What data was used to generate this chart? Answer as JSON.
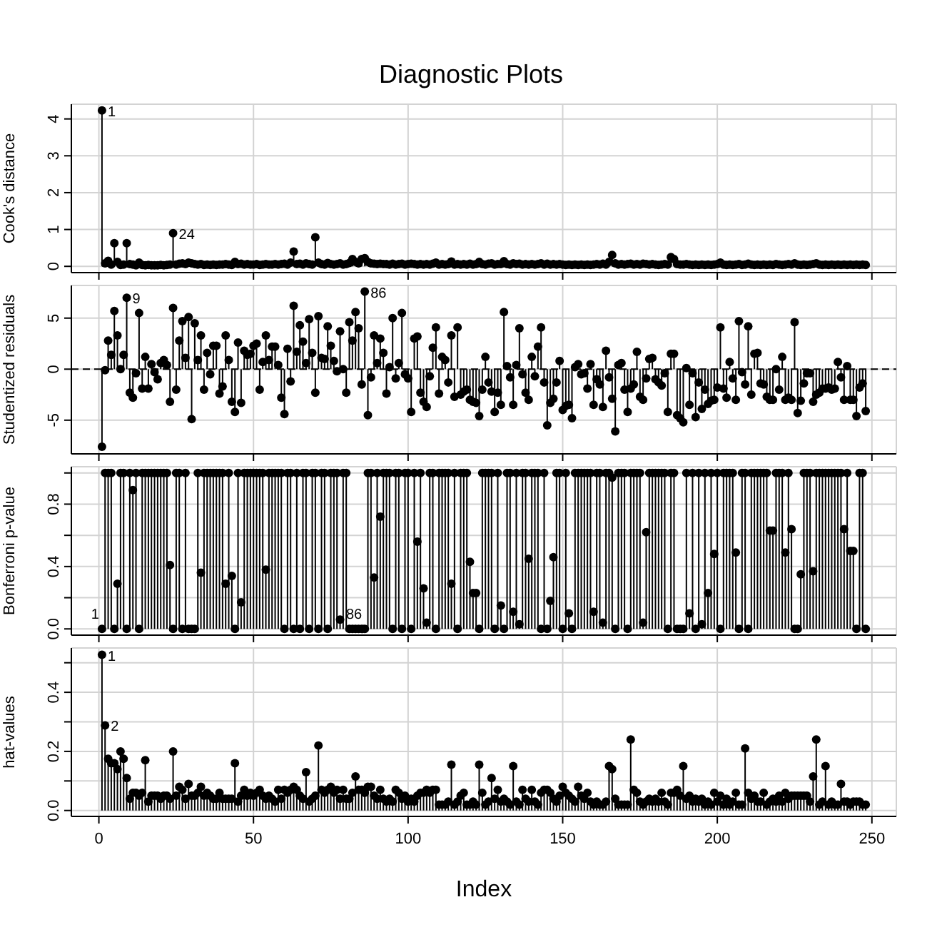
{
  "chart_data": [
    {
      "type": "lollipop",
      "title": "Diagnostic Plots",
      "ylabel": "Cook's distance",
      "color": "#000000",
      "marker": "circle",
      "grid": true,
      "tick_labels": "y",
      "xlim": [
        -8.9,
        257.9
      ],
      "xticks": [
        0,
        50,
        100,
        150,
        200,
        250
      ],
      "ylim": [
        -0.17,
        4.4
      ],
      "yticks": [
        0,
        1,
        2,
        3,
        4
      ],
      "annotations": [
        {
          "text": "1",
          "x": 1,
          "y": 4.23
        },
        {
          "text": "24",
          "x": 24,
          "y": 0.9
        }
      ],
      "x": [
        1,
        2,
        3,
        4,
        5,
        6,
        7,
        8,
        9,
        10,
        11,
        12,
        13,
        14,
        15,
        16,
        17,
        18,
        19,
        20,
        21,
        22,
        23,
        24,
        25,
        26,
        27,
        28,
        29,
        30,
        31,
        32,
        33,
        34,
        35,
        36,
        37,
        38,
        39,
        40,
        41,
        42,
        43,
        44,
        45,
        46,
        47,
        48,
        49,
        50,
        51,
        52,
        53,
        54,
        55,
        56,
        57,
        58,
        59,
        60,
        61,
        62,
        63,
        64,
        65,
        66,
        67,
        68,
        69,
        70,
        71,
        72,
        73,
        74,
        75,
        76,
        77,
        78,
        79,
        80,
        81,
        82,
        83,
        84,
        85,
        86,
        87,
        88,
        89,
        90,
        91,
        92,
        93,
        94,
        95,
        96,
        97,
        98,
        99,
        100,
        101,
        102,
        103,
        104,
        105,
        106,
        107,
        108,
        109,
        110,
        111,
        112,
        113,
        114,
        115,
        116,
        117,
        118,
        119,
        120,
        121,
        122,
        123,
        124,
        125,
        126,
        127,
        128,
        129,
        130,
        131,
        132,
        133,
        134,
        135,
        136,
        137,
        138,
        139,
        140,
        141,
        142,
        143,
        144,
        145,
        146,
        147,
        148,
        149,
        150,
        151,
        152,
        153,
        154,
        155,
        156,
        157,
        158,
        159,
        160,
        161,
        162,
        163,
        164,
        165,
        166,
        167,
        168,
        169,
        170,
        171,
        172,
        173,
        174,
        175,
        176,
        177,
        178,
        179,
        180,
        181,
        182,
        183,
        184,
        185,
        186,
        187,
        188,
        189,
        190,
        191,
        192,
        193,
        194,
        195,
        196,
        197,
        198,
        199,
        200,
        201,
        202,
        203,
        204,
        205,
        206,
        207,
        208,
        209,
        210,
        211,
        212,
        213,
        214,
        215,
        216,
        217,
        218,
        219,
        220,
        221,
        222,
        223,
        224,
        225,
        226,
        227,
        228,
        229,
        230,
        231,
        232,
        233,
        234,
        235,
        236,
        237,
        238,
        239,
        240,
        241,
        242,
        243,
        244,
        245,
        246,
        247,
        248
      ],
      "values": [
        4.23,
        0.08,
        0.15,
        0.05,
        0.63,
        0.12,
        0.04,
        0.05,
        0.63,
        0.06,
        0.05,
        0.03,
        0.1,
        0.04,
        0.03,
        0.04,
        0.03,
        0.03,
        0.03,
        0.04,
        0.03,
        0.04,
        0.05,
        0.9,
        0.05,
        0.07,
        0.08,
        0.06,
        0.1,
        0.08,
        0.06,
        0.05,
        0.06,
        0.04,
        0.05,
        0.04,
        0.05,
        0.04,
        0.05,
        0.05,
        0.06,
        0.05,
        0.04,
        0.12,
        0.06,
        0.07,
        0.05,
        0.06,
        0.05,
        0.05,
        0.06,
        0.04,
        0.05,
        0.06,
        0.05,
        0.05,
        0.06,
        0.05,
        0.06,
        0.07,
        0.05,
        0.1,
        0.4,
        0.06,
        0.07,
        0.05,
        0.08,
        0.06,
        0.05,
        0.79,
        0.1,
        0.06,
        0.05,
        0.09,
        0.06,
        0.05,
        0.06,
        0.08,
        0.05,
        0.06,
        0.09,
        0.2,
        0.12,
        0.08,
        0.2,
        0.22,
        0.12,
        0.08,
        0.07,
        0.06,
        0.07,
        0.06,
        0.06,
        0.05,
        0.07,
        0.05,
        0.06,
        0.07,
        0.05,
        0.06,
        0.07,
        0.06,
        0.05,
        0.06,
        0.05,
        0.06,
        0.05,
        0.07,
        0.1,
        0.05,
        0.06,
        0.05,
        0.06,
        0.13,
        0.05,
        0.06,
        0.05,
        0.06,
        0.05,
        0.07,
        0.05,
        0.06,
        0.12,
        0.06,
        0.05,
        0.07,
        0.08,
        0.05,
        0.06,
        0.06,
        0.14,
        0.06,
        0.05,
        0.08,
        0.06,
        0.07,
        0.05,
        0.06,
        0.05,
        0.06,
        0.05,
        0.06,
        0.08,
        0.05,
        0.07,
        0.05,
        0.06,
        0.05,
        0.06,
        0.05,
        0.04,
        0.05,
        0.04,
        0.05,
        0.04,
        0.05,
        0.04,
        0.05,
        0.04,
        0.05,
        0.06,
        0.05,
        0.07,
        0.05,
        0.12,
        0.31,
        0.08,
        0.05,
        0.06,
        0.05,
        0.06,
        0.07,
        0.05,
        0.06,
        0.05,
        0.07,
        0.06,
        0.05,
        0.06,
        0.05,
        0.04,
        0.05,
        0.06,
        0.05,
        0.25,
        0.2,
        0.06,
        0.05,
        0.05,
        0.06,
        0.05,
        0.04,
        0.05,
        0.04,
        0.05,
        0.04,
        0.05,
        0.04,
        0.05,
        0.06,
        0.1,
        0.05,
        0.04,
        0.05,
        0.04,
        0.05,
        0.06,
        0.04,
        0.05,
        0.07,
        0.05,
        0.04,
        0.05,
        0.04,
        0.05,
        0.04,
        0.05,
        0.04,
        0.06,
        0.05,
        0.04,
        0.05,
        0.06,
        0.05,
        0.08,
        0.05,
        0.04,
        0.05,
        0.04,
        0.05,
        0.06,
        0.08,
        0.05,
        0.04,
        0.05,
        0.04,
        0.05,
        0.04,
        0.05,
        0.04,
        0.05,
        0.04,
        0.05,
        0.04,
        0.05,
        0.04,
        0.05,
        0.04
      ]
    },
    {
      "type": "lollipop",
      "ylabel": "Studentized residuals",
      "color": "#000000",
      "marker": "circle",
      "grid": true,
      "tick_labels": "y",
      "xlim": [
        -8.9,
        257.9
      ],
      "xticks": [
        0,
        50,
        100,
        150,
        200,
        250
      ],
      "ylim": [
        -8.3,
        8.2
      ],
      "yticks": [
        -5,
        0,
        5
      ],
      "ref_lines": [
        {
          "axis": "y",
          "value": 0,
          "color": "#000000",
          "line_style": "dashed"
        }
      ],
      "annotations": [
        {
          "text": "9",
          "x": 9,
          "y": 7.0
        },
        {
          "text": "86",
          "x": 86,
          "y": 7.6
        }
      ],
      "x": [
        1,
        2,
        3,
        4,
        5,
        6,
        7,
        8,
        9,
        10,
        11,
        12,
        13,
        14,
        15,
        16,
        17,
        18,
        19,
        20,
        21,
        22,
        23,
        24,
        25,
        26,
        27,
        28,
        29,
        30,
        31,
        32,
        33,
        34,
        35,
        36,
        37,
        38,
        39,
        40,
        41,
        42,
        43,
        44,
        45,
        46,
        47,
        48,
        49,
        50,
        51,
        52,
        53,
        54,
        55,
        56,
        57,
        58,
        59,
        60,
        61,
        62,
        63,
        64,
        65,
        66,
        67,
        68,
        69,
        70,
        71,
        72,
        73,
        74,
        75,
        76,
        77,
        78,
        79,
        80,
        81,
        82,
        83,
        84,
        85,
        86,
        87,
        88,
        89,
        90,
        91,
        92,
        93,
        94,
        95,
        96,
        97,
        98,
        99,
        100,
        101,
        102,
        103,
        104,
        105,
        106,
        107,
        108,
        109,
        110,
        111,
        112,
        113,
        114,
        115,
        116,
        117,
        118,
        119,
        120,
        121,
        122,
        123,
        124,
        125,
        126,
        127,
        128,
        129,
        130,
        131,
        132,
        133,
        134,
        135,
        136,
        137,
        138,
        139,
        140,
        141,
        142,
        143,
        144,
        145,
        146,
        147,
        148,
        149,
        150,
        151,
        152,
        153,
        154,
        155,
        156,
        157,
        158,
        159,
        160,
        161,
        162,
        163,
        164,
        165,
        166,
        167,
        168,
        169,
        170,
        171,
        172,
        173,
        174,
        175,
        176,
        177,
        178,
        179,
        180,
        181,
        182,
        183,
        184,
        185,
        186,
        187,
        188,
        189,
        190,
        191,
        192,
        193,
        194,
        195,
        196,
        197,
        198,
        199,
        200,
        201,
        202,
        203,
        204,
        205,
        206,
        207,
        208,
        209,
        210,
        211,
        212,
        213,
        214,
        215,
        216,
        217,
        218,
        219,
        220,
        221,
        222,
        223,
        224,
        225,
        226,
        227,
        228,
        229,
        230,
        231,
        232,
        233,
        234,
        235,
        236,
        237,
        238,
        239,
        240,
        241,
        242,
        243,
        244,
        245,
        246,
        247,
        248
      ],
      "values": [
        -7.6,
        -0.1,
        2.8,
        1.4,
        5.7,
        3.3,
        0,
        1.4,
        7.0,
        -2.3,
        -2.8,
        -0.4,
        5.5,
        -1.9,
        1.2,
        -1.9,
        0.5,
        -0.3,
        -1.0,
        0.6,
        0.9,
        0.4,
        -3.2,
        6.0,
        -2.0,
        2.8,
        4.7,
        1.1,
        5.1,
        -4.9,
        4.5,
        0.9,
        3.3,
        -2.0,
        1.6,
        -0.5,
        2.3,
        2.3,
        -2.4,
        -1.7,
        3.3,
        0.9,
        -3.2,
        -4.2,
        2.6,
        -3.3,
        1.8,
        1.4,
        1.5,
        2.3,
        2.5,
        -2.0,
        0.7,
        3.3,
        0.9,
        2.2,
        2.2,
        0.4,
        -2.8,
        -4.4,
        2.0,
        -1.2,
        6.2,
        1.7,
        4.3,
        2.7,
        0.6,
        4.9,
        1.6,
        -2.3,
        5.2,
        1.1,
        1.0,
        4.2,
        2.3,
        0.8,
        -0.2,
        3.7,
        0,
        -2.3,
        4.6,
        2.8,
        5.6,
        4.0,
        -1.5,
        7.6,
        -4.5,
        -0.8,
        3.3,
        0.6,
        3.0,
        1.6,
        -2.4,
        0.2,
        5.0,
        -0.9,
        0.6,
        5.5,
        -0.5,
        -0.9,
        -4.2,
        3.0,
        3.2,
        -2.3,
        -3.2,
        -3.7,
        -0.7,
        2.1,
        4.1,
        -2.4,
        1.2,
        0.9,
        -1.3,
        3.3,
        -2.7,
        4.1,
        -2.5,
        -2.2,
        -2.0,
        -3.0,
        -3.2,
        -3.3,
        -4.6,
        -2.0,
        1.2,
        -1.3,
        -2.2,
        -4.2,
        -2.3,
        -3.5,
        5.6,
        0.3,
        -0.8,
        -3.5,
        0.4,
        4.0,
        -0.5,
        -2.3,
        -3.0,
        1.2,
        -0.7,
        2.2,
        4.1,
        -1.3,
        -5.5,
        -3.3,
        -2.9,
        -1.3,
        0.8,
        -4.0,
        -3.6,
        -3.5,
        -4.8,
        0.2,
        0.5,
        -0.5,
        -0.4,
        -1.9,
        0.5,
        -3.5,
        -1.0,
        -1.5,
        -3.7,
        1.8,
        -0.8,
        -2.9,
        -6.1,
        0.4,
        0.6,
        -2.0,
        -4.2,
        -1.9,
        -1.5,
        1.7,
        -2.7,
        -3.0,
        -0.9,
        1.0,
        1.1,
        -1.0,
        -1.3,
        -1.6,
        -0.4,
        -4.2,
        1.5,
        1.5,
        -4.5,
        -4.8,
        -5.2,
        0.1,
        -3.5,
        -0.4,
        -4.7,
        -1.3,
        -3.9,
        -2.0,
        -3.4,
        -3.1,
        -3.0,
        -1.8,
        4.1,
        -1.9,
        -2.8,
        0.7,
        -0.9,
        -3.0,
        4.7,
        -0.3,
        -1.5,
        4.2,
        -2.5,
        1.5,
        1.6,
        -1.4,
        -1.5,
        -2.7,
        -3.0,
        -3.0,
        0,
        -2.0,
        1.2,
        -3.0,
        -2.8,
        -3.0,
        4.6,
        -4.3,
        -3.1,
        -1.4,
        -0.4,
        -0.4,
        -3.2,
        -2.5,
        -2.3,
        -1.9,
        -1.9,
        -1.8,
        -2.0,
        -1.9,
        0.7,
        -0.8,
        -3.0,
        0.3,
        -3.0,
        -3.0,
        -4.6,
        -1.8,
        -1.4,
        -4.1
      ]
    },
    {
      "type": "lollipop",
      "ylabel": "Bonferroni p-value",
      "color": "#000000",
      "marker": "circle",
      "grid": true,
      "tick_labels": "y",
      "xlim": [
        -8.9,
        257.9
      ],
      "xticks": [
        0,
        50,
        100,
        150,
        200,
        250
      ],
      "ylim": [
        -0.04,
        1.04
      ],
      "yticks": [
        {
          "value": 0,
          "label": "0.0"
        },
        {
          "value": 0.2,
          "label": null
        },
        {
          "value": 0.4,
          "label": "0.4"
        },
        {
          "value": 0.6,
          "label": null
        },
        {
          "value": 0.8,
          "label": "0.8"
        },
        {
          "value": 1,
          "label": null
        }
      ],
      "annotations": [
        {
          "text": "1",
          "x": 1,
          "y": 0
        },
        {
          "text": "86",
          "x": 86,
          "y": 0
        }
      ],
      "x": [
        1,
        2,
        3,
        4,
        5,
        6,
        7,
        8,
        9,
        10,
        11,
        12,
        13,
        14,
        15,
        16,
        17,
        18,
        19,
        20,
        21,
        22,
        23,
        24,
        25,
        26,
        27,
        28,
        29,
        30,
        31,
        32,
        33,
        34,
        35,
        36,
        37,
        38,
        39,
        40,
        41,
        42,
        43,
        44,
        45,
        46,
        47,
        48,
        49,
        50,
        51,
        52,
        53,
        54,
        55,
        56,
        57,
        58,
        59,
        60,
        61,
        62,
        63,
        64,
        65,
        66,
        67,
        68,
        69,
        70,
        71,
        72,
        73,
        74,
        75,
        76,
        77,
        78,
        79,
        80,
        81,
        82,
        83,
        84,
        85,
        86,
        87,
        88,
        89,
        90,
        91,
        92,
        93,
        94,
        95,
        96,
        97,
        98,
        99,
        100,
        101,
        102,
        103,
        104,
        105,
        106,
        107,
        108,
        109,
        110,
        111,
        112,
        113,
        114,
        115,
        116,
        117,
        118,
        119,
        120,
        121,
        122,
        123,
        124,
        125,
        126,
        127,
        128,
        129,
        130,
        131,
        132,
        133,
        134,
        135,
        136,
        137,
        138,
        139,
        140,
        141,
        142,
        143,
        144,
        145,
        146,
        147,
        148,
        149,
        150,
        151,
        152,
        153,
        154,
        155,
        156,
        157,
        158,
        159,
        160,
        161,
        162,
        163,
        164,
        165,
        166,
        167,
        168,
        169,
        170,
        171,
        172,
        173,
        174,
        175,
        176,
        177,
        178,
        179,
        180,
        181,
        182,
        183,
        184,
        185,
        186,
        187,
        188,
        189,
        190,
        191,
        192,
        193,
        194,
        195,
        196,
        197,
        198,
        199,
        200,
        201,
        202,
        203,
        204,
        205,
        206,
        207,
        208,
        209,
        210,
        211,
        212,
        213,
        214,
        215,
        216,
        217,
        218,
        219,
        220,
        221,
        222,
        223,
        224,
        225,
        226,
        227,
        228,
        229,
        230,
        231,
        232,
        233,
        234,
        235,
        236,
        237,
        238,
        239,
        240,
        241,
        242,
        243,
        244,
        245,
        246,
        247,
        248
      ],
      "values": [
        0,
        1,
        1,
        1,
        0,
        0.29,
        1,
        1,
        0,
        1,
        0.89,
        1,
        0,
        1,
        1,
        1,
        1,
        1,
        1,
        1,
        1,
        1,
        0.41,
        0,
        1,
        1,
        0,
        1,
        0,
        0,
        0,
        1,
        0.36,
        1,
        1,
        1,
        1,
        1,
        1,
        1,
        0.29,
        1,
        0.34,
        0,
        1,
        0.17,
        1,
        1,
        1,
        1,
        1,
        1,
        1,
        0.38,
        1,
        1,
        1,
        1,
        1,
        0,
        1,
        1,
        0,
        1,
        0,
        1,
        1,
        0,
        1,
        1,
        0,
        1,
        1,
        0,
        1,
        1,
        1,
        0.06,
        1,
        1,
        0,
        0,
        0,
        0,
        0,
        0,
        1,
        1,
        0.33,
        1,
        0.72,
        1,
        1,
        1,
        0,
        1,
        1,
        0,
        1,
        1,
        0,
        1,
        0.56,
        1,
        0.26,
        0.04,
        1,
        1,
        0,
        1,
        1,
        1,
        1,
        0.29,
        1,
        0,
        1,
        1,
        1,
        0.43,
        0.23,
        0.23,
        0,
        1,
        1,
        1,
        1,
        0,
        1,
        0.15,
        0,
        1,
        1,
        0.11,
        1,
        0.03,
        1,
        1,
        0.45,
        1,
        1,
        1,
        0,
        1,
        0,
        0.18,
        0.46,
        1,
        1,
        0,
        1,
        0.1,
        0,
        1,
        1,
        1,
        1,
        1,
        1,
        0.11,
        1,
        1,
        0.04,
        1,
        1,
        0.97,
        0,
        1,
        1,
        1,
        0,
        1,
        1,
        1,
        1,
        0.04,
        0.62,
        1,
        1,
        1,
        1,
        1,
        1,
        0,
        1,
        1,
        0,
        0,
        0,
        1,
        0.1,
        1,
        0,
        1,
        0.03,
        1,
        0.23,
        1,
        0.48,
        1,
        0,
        1,
        1,
        1,
        1,
        0.49,
        0,
        1,
        1,
        0,
        1,
        1,
        1,
        1,
        1,
        1,
        0.63,
        0.63,
        1,
        1,
        1,
        0.49,
        1,
        0.64,
        0,
        0,
        0.35,
        1,
        1,
        1,
        0.37,
        1,
        1,
        1,
        1,
        1,
        1,
        1,
        1,
        1,
        0.64,
        1,
        0.5,
        0.5,
        0,
        1,
        1,
        0
      ]
    },
    {
      "type": "lollipop",
      "ylabel": "hat-values",
      "xlabel": "Index",
      "color": "#000000",
      "marker": "circle",
      "grid": true,
      "xlim": [
        -8.9,
        257.9
      ],
      "xticks": [
        0,
        50,
        100,
        150,
        200,
        250
      ],
      "ylim": [
        -0.02,
        0.55
      ],
      "yticks": [
        {
          "value": 0,
          "label": "0.0"
        },
        {
          "value": 0.1,
          "label": null
        },
        {
          "value": 0.2,
          "label": "0.2"
        },
        {
          "value": 0.3,
          "label": null
        },
        {
          "value": 0.4,
          "label": "0.4"
        },
        {
          "value": 0.5,
          "label": null
        }
      ],
      "annotations": [
        {
          "text": "1",
          "x": 1,
          "y": 0.527
        },
        {
          "text": "2",
          "x": 2,
          "y": 0.288
        }
      ],
      "x": [
        1,
        2,
        3,
        4,
        5,
        6,
        7,
        8,
        9,
        10,
        11,
        12,
        13,
        14,
        15,
        16,
        17,
        18,
        19,
        20,
        21,
        22,
        23,
        24,
        25,
        26,
        27,
        28,
        29,
        30,
        31,
        32,
        33,
        34,
        35,
        36,
        37,
        38,
        39,
        40,
        41,
        42,
        43,
        44,
        45,
        46,
        47,
        48,
        49,
        50,
        51,
        52,
        53,
        54,
        55,
        56,
        57,
        58,
        59,
        60,
        61,
        62,
        63,
        64,
        65,
        66,
        67,
        68,
        69,
        70,
        71,
        72,
        73,
        74,
        75,
        76,
        77,
        78,
        79,
        80,
        81,
        82,
        83,
        84,
        85,
        86,
        87,
        88,
        89,
        90,
        91,
        92,
        93,
        94,
        95,
        96,
        97,
        98,
        99,
        100,
        101,
        102,
        103,
        104,
        105,
        106,
        107,
        108,
        109,
        110,
        111,
        112,
        113,
        114,
        115,
        116,
        117,
        118,
        119,
        120,
        121,
        122,
        123,
        124,
        125,
        126,
        127,
        128,
        129,
        130,
        131,
        132,
        133,
        134,
        135,
        136,
        137,
        138,
        139,
        140,
        141,
        142,
        143,
        144,
        145,
        146,
        147,
        148,
        149,
        150,
        151,
        152,
        153,
        154,
        155,
        156,
        157,
        158,
        159,
        160,
        161,
        162,
        163,
        164,
        165,
        166,
        167,
        168,
        169,
        170,
        171,
        172,
        173,
        174,
        175,
        176,
        177,
        178,
        179,
        180,
        181,
        182,
        183,
        184,
        185,
        186,
        187,
        188,
        189,
        190,
        191,
        192,
        193,
        194,
        195,
        196,
        197,
        198,
        199,
        200,
        201,
        202,
        203,
        204,
        205,
        206,
        207,
        208,
        209,
        210,
        211,
        212,
        213,
        214,
        215,
        216,
        217,
        218,
        219,
        220,
        221,
        222,
        223,
        224,
        225,
        226,
        227,
        228,
        229,
        230,
        231,
        232,
        233,
        234,
        235,
        236,
        237,
        238,
        239,
        240,
        241,
        242,
        243,
        244,
        245,
        246,
        247,
        248
      ],
      "values": [
        0.527,
        0.288,
        0.175,
        0.16,
        0.16,
        0.14,
        0.2,
        0.175,
        0.11,
        0.04,
        0.06,
        0.06,
        0.05,
        0.06,
        0.17,
        0.03,
        0.05,
        0.05,
        0.05,
        0.04,
        0.05,
        0.05,
        0.04,
        0.2,
        0.05,
        0.08,
        0.07,
        0.04,
        0.09,
        0.05,
        0.05,
        0.06,
        0.08,
        0.05,
        0.06,
        0.05,
        0.04,
        0.04,
        0.06,
        0.04,
        0.04,
        0.04,
        0.04,
        0.16,
        0.03,
        0.05,
        0.07,
        0.05,
        0.06,
        0.05,
        0.06,
        0.07,
        0.05,
        0.04,
        0.05,
        0.04,
        0.03,
        0.07,
        0.04,
        0.07,
        0.06,
        0.07,
        0.08,
        0.07,
        0.05,
        0.04,
        0.13,
        0.03,
        0.04,
        0.05,
        0.22,
        0.07,
        0.06,
        0.07,
        0.08,
        0.06,
        0.07,
        0.04,
        0.07,
        0.04,
        0.04,
        0.06,
        0.115,
        0.07,
        0.07,
        0.06,
        0.08,
        0.08,
        0.05,
        0.04,
        0.07,
        0.04,
        0.03,
        0.04,
        0.03,
        0.07,
        0.06,
        0.04,
        0.05,
        0.03,
        0.04,
        0.03,
        0.05,
        0.06,
        0.06,
        0.07,
        0.06,
        0.07,
        0.07,
        0.02,
        0.02,
        0.02,
        0.03,
        0.155,
        0.02,
        0.03,
        0.05,
        0.06,
        0.02,
        0.02,
        0.03,
        0.02,
        0.155,
        0.06,
        0.02,
        0.03,
        0.11,
        0.04,
        0.07,
        0.03,
        0.04,
        0.03,
        0.02,
        0.15,
        0.03,
        0.02,
        0.07,
        0.04,
        0.03,
        0.07,
        0.03,
        0.02,
        0.06,
        0.07,
        0.07,
        0.06,
        0.04,
        0.03,
        0.05,
        0.08,
        0.06,
        0.05,
        0.04,
        0.03,
        0.08,
        0.05,
        0.04,
        0.06,
        0.03,
        0.02,
        0.03,
        0.02,
        0.02,
        0.03,
        0.15,
        0.14,
        0.04,
        0.02,
        0.02,
        0.02,
        0.02,
        0.24,
        0.07,
        0.06,
        0.03,
        0.02,
        0.03,
        0.04,
        0.03,
        0.04,
        0.03,
        0.06,
        0.03,
        0.02,
        0.06,
        0.06,
        0.07,
        0.05,
        0.15,
        0.04,
        0.05,
        0.03,
        0.04,
        0.03,
        0.04,
        0.02,
        0.03,
        0.02,
        0.06,
        0.03,
        0.05,
        0.02,
        0.04,
        0.02,
        0.03,
        0.06,
        0.02,
        0.02,
        0.21,
        0.06,
        0.04,
        0.05,
        0.03,
        0.03,
        0.06,
        0.02,
        0.03,
        0.04,
        0.03,
        0.05,
        0.03,
        0.06,
        0.04,
        0.05,
        0.05,
        0.05,
        0.05,
        0.05,
        0.05,
        0.03,
        0.115,
        0.24,
        0.02,
        0.03,
        0.15,
        0.02,
        0.03,
        0.02,
        0.02,
        0.09,
        0.03,
        0.03,
        0.02,
        0.03,
        0.03,
        0.03,
        0.02,
        0.02
      ]
    }
  ]
}
